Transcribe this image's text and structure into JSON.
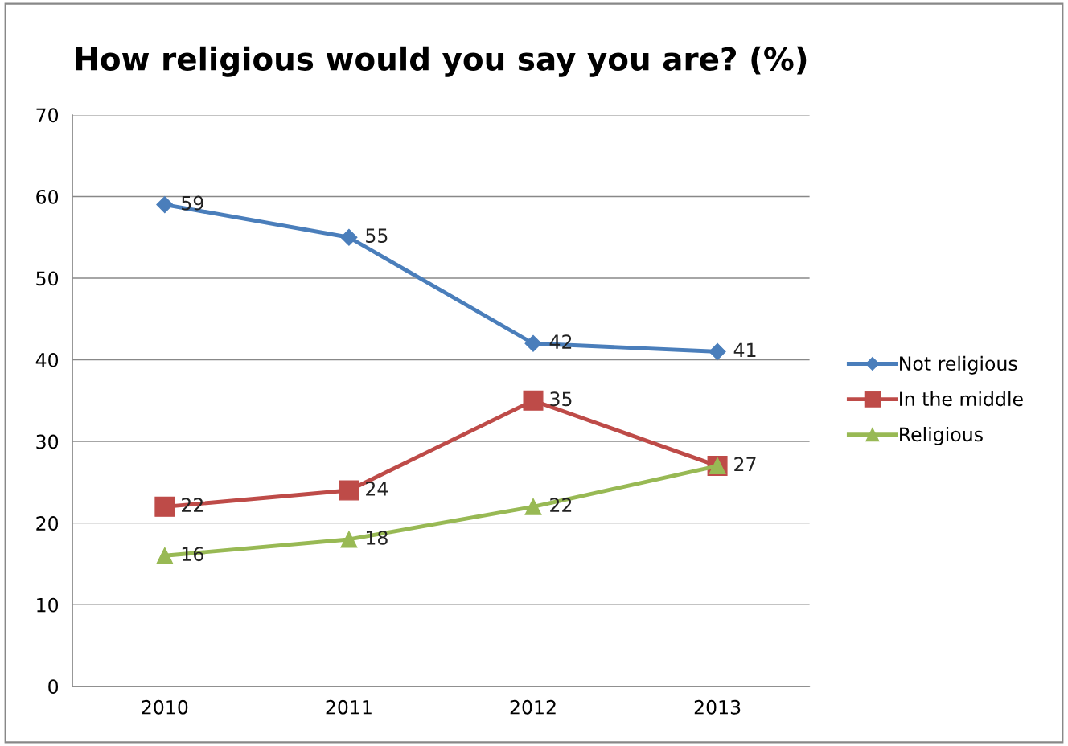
{
  "chart_data": {
    "type": "line",
    "title": "How religious would you say you are? (%)",
    "categories": [
      "2010",
      "2011",
      "2012",
      "2013"
    ],
    "series": [
      {
        "name": "Not religious",
        "color": "#4a7ebb",
        "marker": "diamond",
        "values": [
          59,
          55,
          42,
          41
        ]
      },
      {
        "name": "In the middle",
        "color": "#be4b48",
        "marker": "square",
        "values": [
          22,
          24,
          35,
          27
        ],
        "value_labels": [
          "22",
          "24",
          "35",
          null
        ]
      },
      {
        "name": "Religious",
        "color": "#98b954",
        "marker": "triangle",
        "values": [
          16,
          18,
          22,
          27
        ]
      }
    ],
    "ylim": [
      0,
      70
    ],
    "yticks": [
      0,
      10,
      20,
      30,
      40,
      50,
      60,
      70
    ],
    "grid": "y",
    "legend": "right",
    "data_labels": true,
    "line_style": "solid"
  }
}
